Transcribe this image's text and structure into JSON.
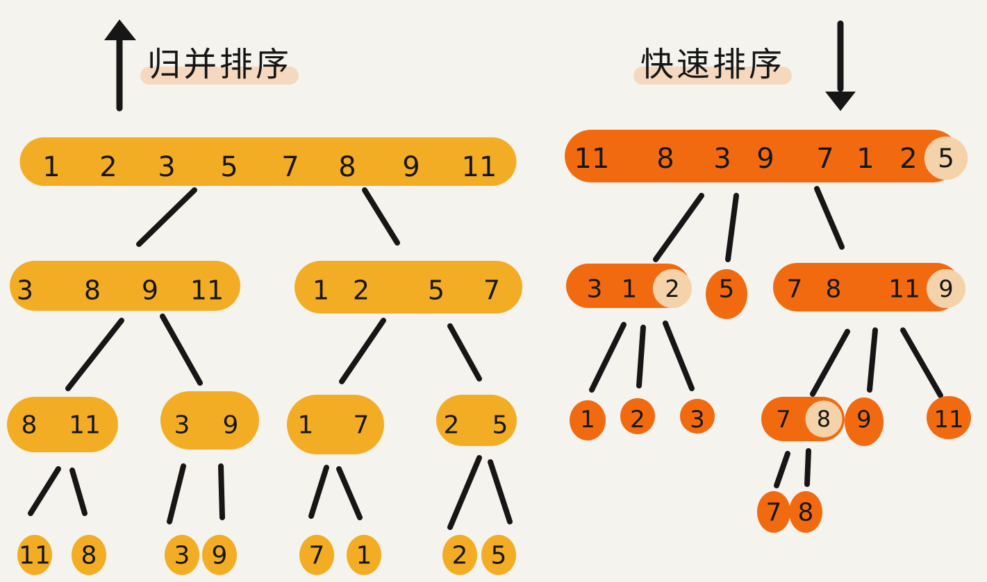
{
  "titles": {
    "merge": "归并排序",
    "quick": "快速排序"
  },
  "colors": {
    "merge_fill": "#f3ad24",
    "quick_fill": "#f26a10",
    "pivot_fill": "#f4d2aa",
    "ink": "#161616",
    "background": "#f4f3ee",
    "title_wash": "#f6cfb0"
  },
  "merge_sort": {
    "arrow_direction": "up",
    "level_0": [
      [
        "1",
        "2",
        "3",
        "5",
        "7",
        "8",
        "9",
        "11"
      ]
    ],
    "level_1": [
      [
        "3",
        "8",
        "9",
        "11"
      ],
      [
        "1",
        "2",
        "5",
        "7"
      ]
    ],
    "level_2": [
      [
        "8",
        "11"
      ],
      [
        "3",
        "9"
      ],
      [
        "1",
        "7"
      ],
      [
        "2",
        "5"
      ]
    ],
    "level_3": [
      [
        "11"
      ],
      [
        "8"
      ],
      [
        "3"
      ],
      [
        "9"
      ],
      [
        "7"
      ],
      [
        "1"
      ],
      [
        "2"
      ],
      [
        "5"
      ]
    ]
  },
  "quick_sort": {
    "arrow_direction": "down",
    "root": {
      "values": [
        "11",
        "8",
        "3",
        "9",
        "7",
        "1",
        "2",
        "5"
      ],
      "pivot": "5"
    },
    "level_1": [
      {
        "values": [
          "3",
          "1",
          "2"
        ],
        "pivot": "2"
      },
      {
        "values": [
          "5"
        ],
        "pivot": null
      },
      {
        "values": [
          "7",
          "8",
          "11",
          "9"
        ],
        "pivot": "9"
      }
    ],
    "level_2": [
      {
        "values": [
          "1"
        ],
        "pivot": null
      },
      {
        "values": [
          "2"
        ],
        "pivot": null
      },
      {
        "values": [
          "3"
        ],
        "pivot": null
      },
      {
        "values": [
          "7",
          "8"
        ],
        "pivot": "8"
      },
      {
        "values": [
          "9"
        ],
        "pivot": null
      },
      {
        "values": [
          "11"
        ],
        "pivot": null
      }
    ],
    "level_3": [
      {
        "values": [
          "7"
        ],
        "pivot": null
      },
      {
        "values": [
          "8"
        ],
        "pivot": null
      }
    ]
  }
}
